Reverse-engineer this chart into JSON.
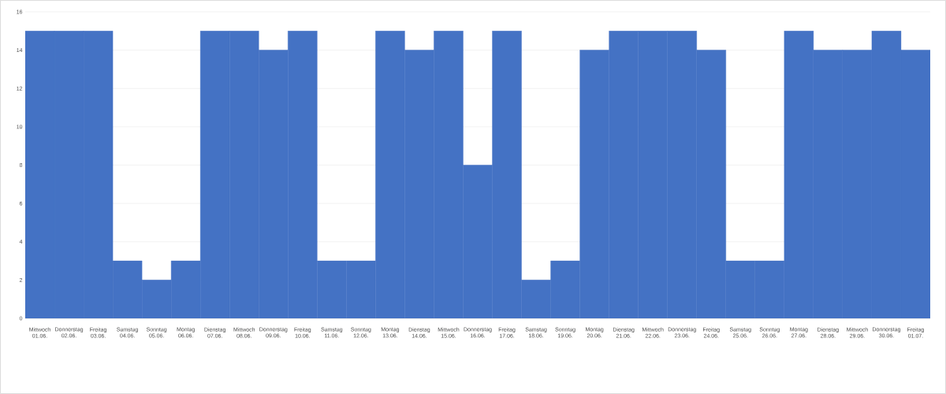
{
  "chart_data": {
    "type": "bar",
    "categories": [
      "Mittwoch 01.06.",
      "Donnerstag 02.06.",
      "Freitag 03.06.",
      "Samstag 04.06.",
      "Sonntag 05.06.",
      "Montag 06.06.",
      "Dienstag 07.06.",
      "Mittwoch 08.06.",
      "Donnerstag 09.06.",
      "Freitag 10.06.",
      "Samstag 11.06.",
      "Sonntag 12.06.",
      "Montag 13.06.",
      "Dienstag 14.06.",
      "Mittwoch 15.06.",
      "Donnerstag 16.06.",
      "Freitag 17.06.",
      "Samstag 18.06.",
      "Sonntag 19.06.",
      "Montag 20.06.",
      "Dienstag 21.06.",
      "Mittwoch 22.06.",
      "Donnerstag 23.06.",
      "Freitag 24.06.",
      "Samstag 25.06.",
      "Sonntag 26.06.",
      "Montag 27.06.",
      "Dienstag 28.06.",
      "Mittwoch 29.06.",
      "Donnerstag 30.06.",
      "Freitag 01.07."
    ],
    "values": [
      15,
      15,
      15,
      3,
      2,
      3,
      15,
      15,
      14,
      15,
      3,
      3,
      15,
      14,
      15,
      8,
      15,
      2,
      3,
      14,
      15,
      15,
      15,
      14,
      3,
      3,
      15,
      14,
      14,
      15,
      14
    ],
    "color": "#4472c4",
    "ylim": [
      0,
      16
    ],
    "yticks": [
      0,
      2,
      4,
      6,
      8,
      10,
      12,
      14,
      16
    ],
    "grid": "y"
  }
}
